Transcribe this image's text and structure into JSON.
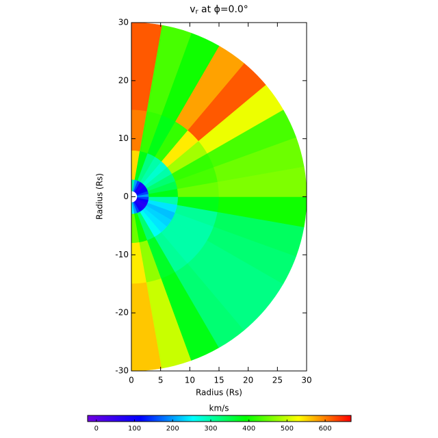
{
  "chart_data": {
    "type": "polar-field",
    "title": [
      "v",
      "r",
      " at ϕ=0.0°"
    ],
    "xlabel": "Radius (Rs)",
    "ylabel": "Radius (Rs)",
    "xlim": [
      0,
      30
    ],
    "ylim": [
      -30,
      30
    ],
    "xticks": [
      0,
      5,
      10,
      15,
      20,
      25,
      30
    ],
    "yticks": [
      -30,
      -20,
      -10,
      0,
      10,
      20,
      30
    ],
    "angle_edges": [
      -90,
      -80,
      -70,
      -60,
      -50,
      -40,
      -30,
      -20,
      -10,
      0,
      10,
      20,
      30,
      40,
      50,
      60,
      70,
      80,
      90
    ],
    "radius_edges": [
      1,
      3,
      8,
      15,
      30
    ],
    "values": [
      [
        250,
        200,
        150,
        100,
        80,
        70,
        80,
        100,
        150,
        200,
        150,
        120,
        100,
        80,
        90,
        150,
        200,
        300
      ],
      [
        450,
        400,
        330,
        260,
        240,
        230,
        220,
        240,
        300,
        380,
        350,
        330,
        300,
        280,
        300,
        320,
        380,
        550
      ],
      [
        540,
        470,
        370,
        310,
        300,
        300,
        300,
        310,
        380,
        450,
        430,
        420,
        480,
        540,
        420,
        380,
        420,
        600
      ],
      [
        560,
        500,
        380,
        330,
        320,
        320,
        330,
        340,
        400,
        460,
        450,
        430,
        520,
        620,
        580,
        400,
        430,
        620
      ]
    ],
    "colorbar_label": "km/s",
    "clim": [
      -23,
      668
    ],
    "colorbar_ticks": [
      0,
      100,
      200,
      300,
      400,
      500,
      600
    ],
    "colormap": [
      "#7000e0",
      "#0000ff",
      "#00ffff",
      "#00ff00",
      "#ffff00",
      "#ff0000"
    ]
  }
}
